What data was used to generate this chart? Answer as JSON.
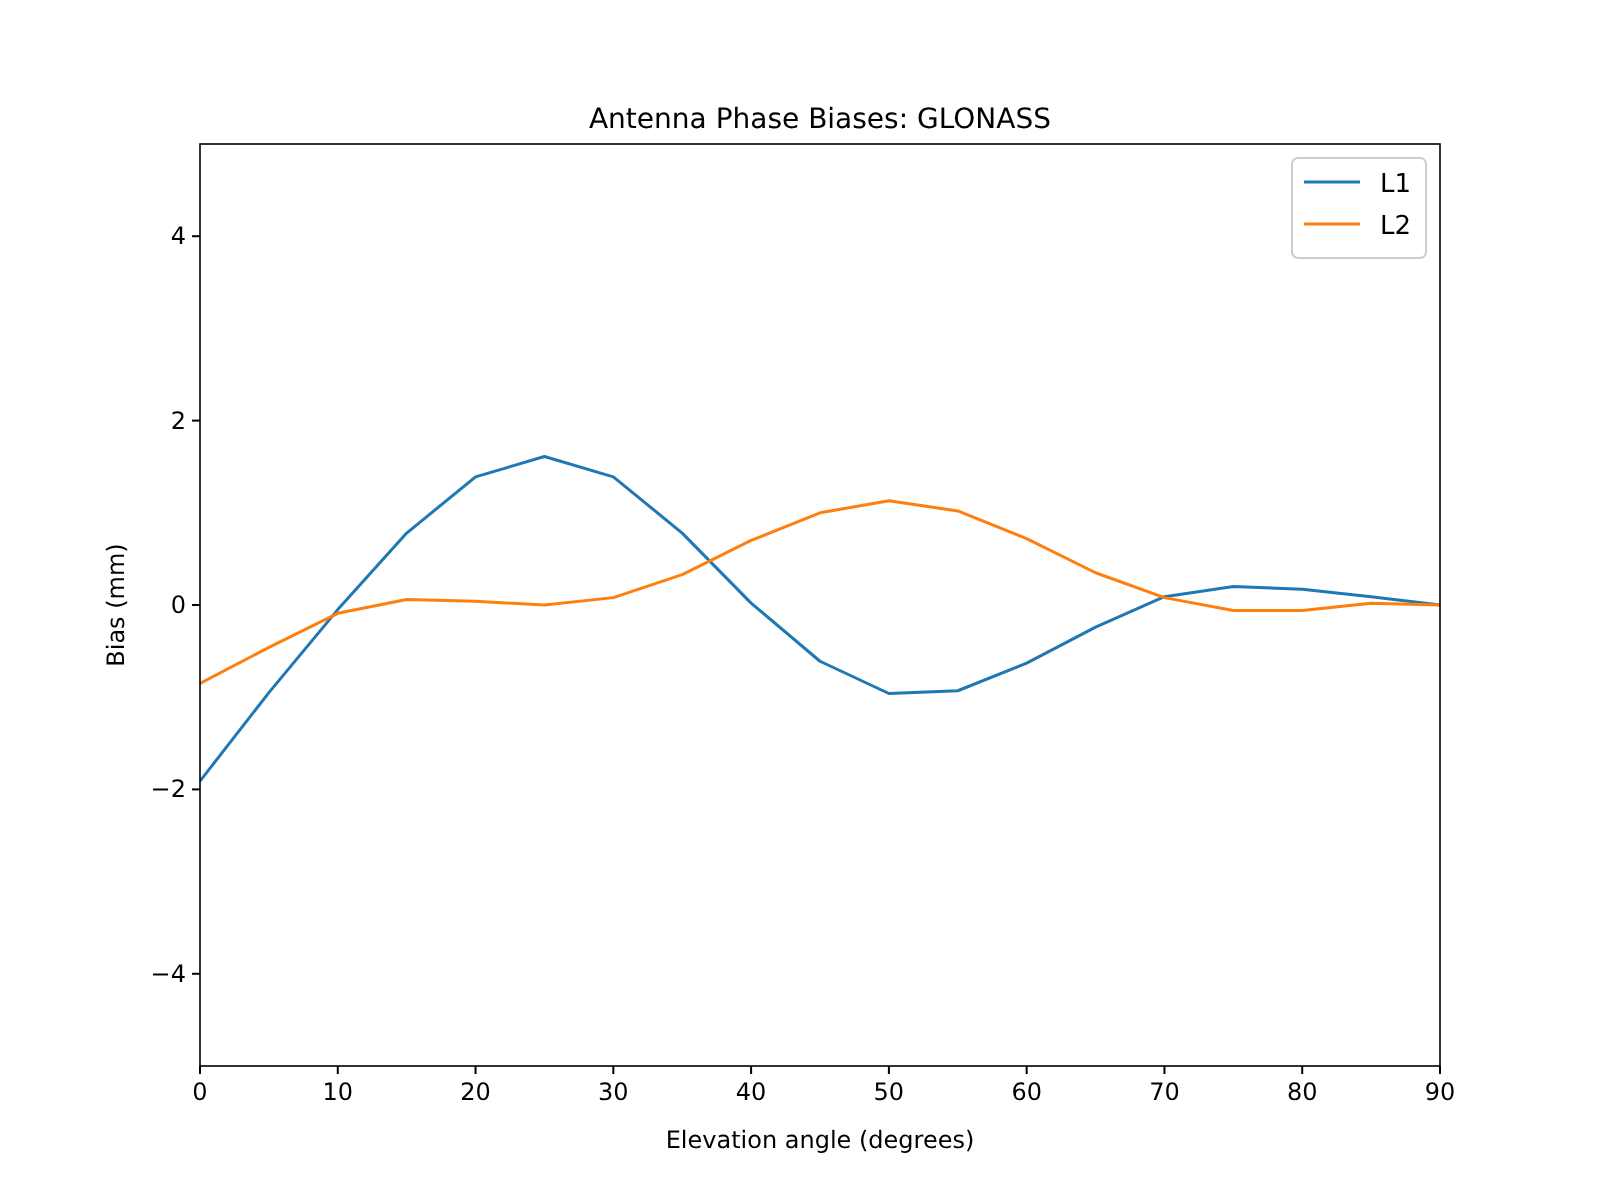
{
  "chart_data": {
    "type": "line",
    "title": "Antenna Phase Biases: GLONASS",
    "xlabel": "Elevation angle (degrees)",
    "ylabel": "Bias (mm)",
    "x": [
      0,
      5,
      10,
      15,
      20,
      25,
      30,
      35,
      40,
      45,
      50,
      55,
      60,
      65,
      70,
      75,
      80,
      85,
      90
    ],
    "series": [
      {
        "name": "L1",
        "color": "#1f77b4",
        "values": [
          -1.91,
          -0.95,
          -0.05,
          0.78,
          1.39,
          1.61,
          1.39,
          0.78,
          0.02,
          -0.61,
          -0.96,
          -0.93,
          -0.63,
          -0.24,
          0.09,
          0.2,
          0.17,
          0.09,
          0.0
        ]
      },
      {
        "name": "L2",
        "color": "#ff7f0e",
        "values": [
          -0.85,
          -0.46,
          -0.09,
          0.06,
          0.04,
          0.0,
          0.08,
          0.33,
          0.7,
          1.0,
          1.13,
          1.02,
          0.72,
          0.35,
          0.08,
          -0.06,
          -0.06,
          0.02,
          0.0
        ]
      }
    ],
    "xlim": [
      0,
      90
    ],
    "xticks": [
      0,
      10,
      20,
      30,
      40,
      50,
      60,
      70,
      80,
      90
    ],
    "ylim": [
      -5,
      5
    ],
    "yticks": [
      {
        "value": -4,
        "label": "−4"
      },
      {
        "value": -2,
        "label": "−2"
      },
      0,
      2,
      4
    ],
    "legend": "top right",
    "grid": false,
    "marker": "none",
    "line_style": "solid"
  }
}
